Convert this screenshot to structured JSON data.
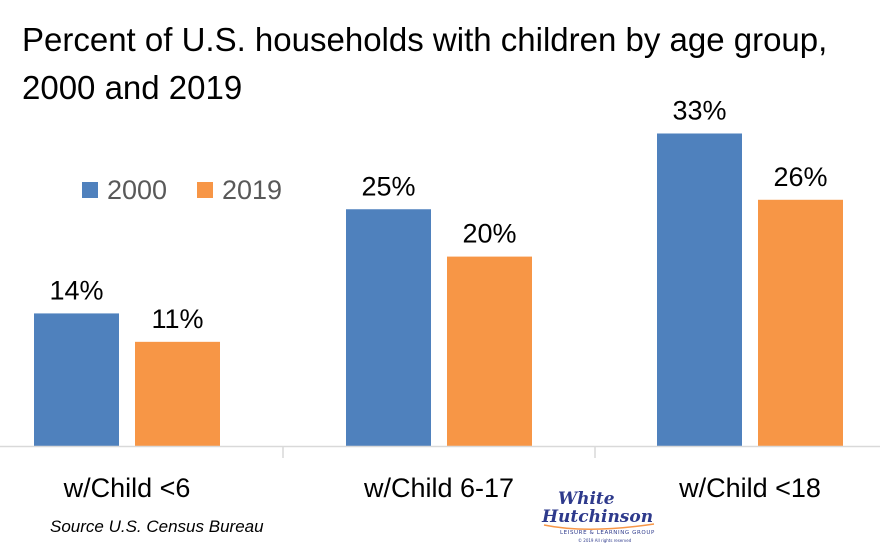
{
  "chart_data": {
    "type": "bar",
    "title": "Percent of U.S. households with children by age group, 2000 and 2019",
    "categories": [
      "w/Child <6",
      "w/Child 6-17",
      "w/Child <18"
    ],
    "series": [
      {
        "name": "2000",
        "values": [
          14,
          25,
          33
        ],
        "labels": [
          "14%",
          "25%",
          "33%"
        ],
        "color": "#4F81BD"
      },
      {
        "name": "2019",
        "values": [
          11,
          20,
          26
        ],
        "labels": [
          "11%",
          "20%",
          "26%"
        ],
        "color": "#F79646"
      }
    ],
    "ylim": [
      0,
      35
    ],
    "grid": false,
    "legend_position": "top-left",
    "xlabel": "",
    "ylabel": ""
  },
  "source": "Source U.S. Census Bureau",
  "logo": {
    "line1": "White",
    "line2": "Hutchinson",
    "tagline": "LEISURE & LEARNING GROUP",
    "copyright": "© 2019 All rights reserved",
    "color": "#2E3A8C",
    "accent": "#F79646"
  }
}
